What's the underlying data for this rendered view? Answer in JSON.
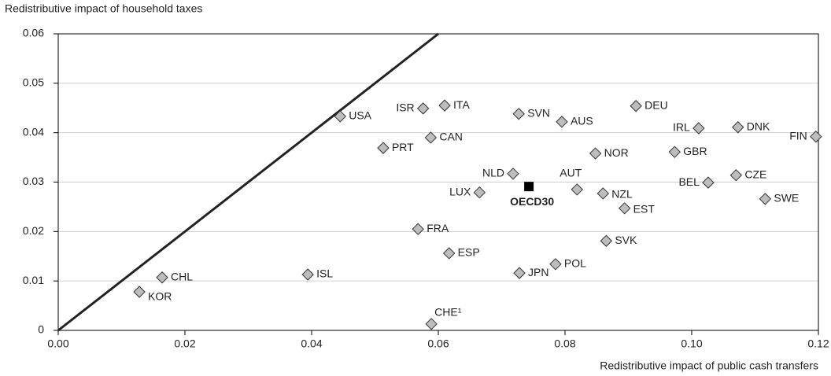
{
  "chart_data": {
    "type": "scatter",
    "y_label": "Redistributive impact of household taxes",
    "x_label": "Redistributive impact of public cash transfers",
    "labels": [
      "KOR",
      "CHL",
      "ISL",
      "USA",
      "PRT",
      "FRA",
      "ISR",
      "CAN",
      "CHE¹",
      "ITA",
      "ESP",
      "LUX",
      "NLD",
      "SVN",
      "JPN",
      "POL",
      "AUS",
      "AUT",
      "NOR",
      "NZL",
      "SVK",
      "EST",
      "DEU",
      "GBR",
      "IRL",
      "BEL",
      "CZE",
      "DNK",
      "SWE",
      "FIN"
    ],
    "x": [
      0.0128,
      0.0164,
      0.0394,
      0.0445,
      0.0513,
      0.0568,
      0.0576,
      0.0588,
      0.0589,
      0.061,
      0.0617,
      0.0665,
      0.0718,
      0.0727,
      0.0728,
      0.0785,
      0.0795,
      0.0819,
      0.0848,
      0.086,
      0.0865,
      0.0894,
      0.0912,
      0.0973,
      0.1011,
      0.1026,
      0.107,
      0.1073,
      0.1116,
      0.1196
    ],
    "values": [
      0.0078,
      0.0107,
      0.0113,
      0.0433,
      0.0369,
      0.0205,
      0.0449,
      0.039,
      0.0013,
      0.0455,
      0.0156,
      0.0279,
      0.0317,
      0.0438,
      0.0116,
      0.0134,
      0.0422,
      0.0285,
      0.0358,
      0.0277,
      0.0181,
      0.0247,
      0.0454,
      0.0361,
      0.0409,
      0.0299,
      0.0314,
      0.0411,
      0.0266,
      0.0392
    ],
    "color": "#bdbdbd",
    "highlight": {
      "label": "OECD30",
      "x": 0.0743,
      "y": 0.0291,
      "color": "#000000"
    },
    "xlim": [
      0,
      0.12
    ],
    "ylim": [
      0,
      0.06
    ],
    "xticks": [
      {
        "value": 0,
        "label": "0.00"
      },
      {
        "value": 0.02,
        "label": "0.02"
      },
      {
        "value": 0.04,
        "label": "0.04"
      },
      {
        "value": 0.06,
        "label": "0.06"
      },
      {
        "value": 0.08,
        "label": "0.08"
      },
      {
        "value": 0.1,
        "label": "0.10"
      },
      {
        "value": 0.12,
        "label": "0.12"
      }
    ],
    "yticks": [
      0,
      0.01,
      0.02,
      0.03,
      0.04,
      0.05,
      0.06
    ],
    "grid": true
  }
}
